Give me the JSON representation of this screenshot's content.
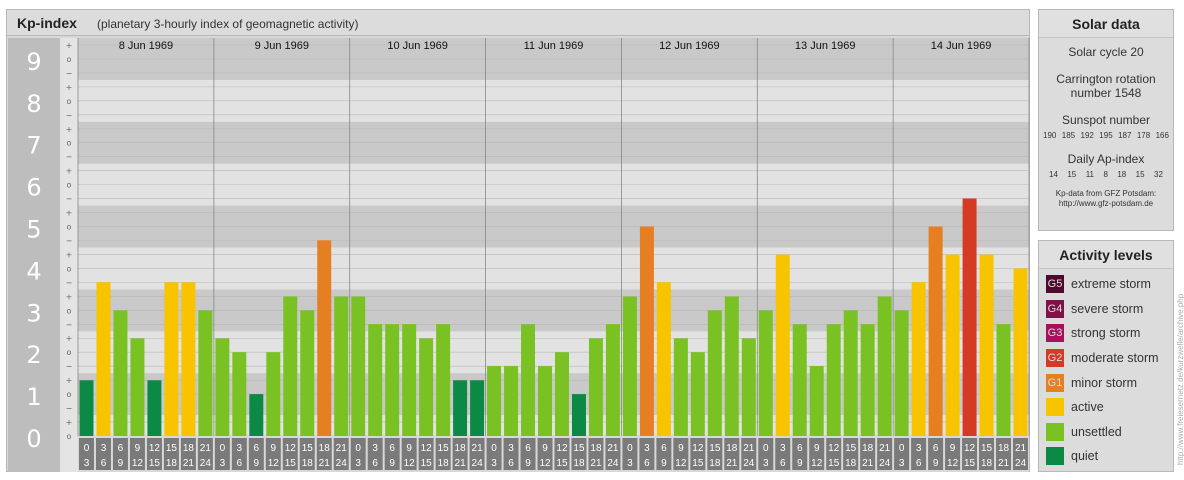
{
  "header": {
    "title": "Kp-index",
    "subtitle": "(planetary 3-hourly index of geomagnetic activity)"
  },
  "chart_data": {
    "type": "bar",
    "title": "Kp-index",
    "subtitle": "(planetary 3-hourly index of geomagnetic activity)",
    "ylim": [
      0,
      9
    ],
    "y_ticks": [
      "0",
      "1",
      "2",
      "3",
      "4",
      "5",
      "6",
      "7",
      "8",
      "9"
    ],
    "sub_tick_symbols": [
      "−",
      "o",
      "+"
    ],
    "days": [
      "8 Jun 1969",
      "9 Jun 1969",
      "10 Jun 1969",
      "11 Jun 1969",
      "12 Jun 1969",
      "13 Jun 1969",
      "14 Jun 1969"
    ],
    "interval_start": [
      "0",
      "3",
      "6",
      "9",
      "12",
      "15",
      "18",
      "21"
    ],
    "interval_end": [
      "3",
      "6",
      "9",
      "12",
      "15",
      "18",
      "21",
      "24"
    ],
    "values": [
      [
        1.33,
        3.67,
        3.0,
        2.33,
        1.33,
        3.67,
        3.67,
        3.0
      ],
      [
        2.33,
        2.0,
        1.0,
        2.0,
        3.33,
        3.0,
        4.67,
        3.33
      ],
      [
        3.33,
        2.67,
        2.67,
        2.67,
        2.33,
        2.67,
        1.33,
        1.33
      ],
      [
        1.67,
        1.67,
        2.67,
        1.67,
        2.0,
        1.0,
        2.33,
        2.67
      ],
      [
        3.33,
        5.0,
        3.67,
        2.33,
        2.0,
        3.0,
        3.33,
        2.33
      ],
      [
        3.0,
        4.33,
        2.67,
        1.67,
        2.67,
        3.0,
        2.67,
        3.33
      ],
      [
        3.0,
        3.67,
        5.0,
        4.33,
        5.67,
        4.33,
        2.67,
        4.0
      ]
    ],
    "grid": true,
    "legend_position": "right"
  },
  "solar": {
    "title": "Solar data",
    "cycle": "Solar cycle 20",
    "carrington_line1": "Carrington rotation",
    "carrington_line2": "number 1548",
    "sunspot_label": "Sunspot number",
    "sunspot_values": [
      "190",
      "185",
      "192",
      "195",
      "187",
      "178",
      "166"
    ],
    "ap_label": "Daily Ap-index",
    "ap_values": [
      "14",
      "15",
      "11",
      "8",
      "18",
      "15",
      "32"
    ],
    "credit_line1": "Kp-data from GFZ Potsdam:",
    "credit_line2": "http://www.gfz-potsdam.de"
  },
  "activity": {
    "title": "Activity levels",
    "items": [
      {
        "code": "G5",
        "label": "extreme storm",
        "color": "#4d0a2e"
      },
      {
        "code": "G4",
        "label": "severe storm",
        "color": "#7c1248"
      },
      {
        "code": "G3",
        "label": "strong storm",
        "color": "#a3125b"
      },
      {
        "code": "G2",
        "label": "moderate storm",
        "color": "#d43a24"
      },
      {
        "code": "G1",
        "label": "minor storm",
        "color": "#e67e22"
      },
      {
        "code": "",
        "label": "active",
        "color": "#f8c400"
      },
      {
        "code": "",
        "label": "unsettled",
        "color": "#7ac224"
      },
      {
        "code": "",
        "label": "quiet",
        "color": "#0c8a45"
      }
    ]
  },
  "watermark": "http://www.freiesernetz.de/kurzwelle/archive.php"
}
